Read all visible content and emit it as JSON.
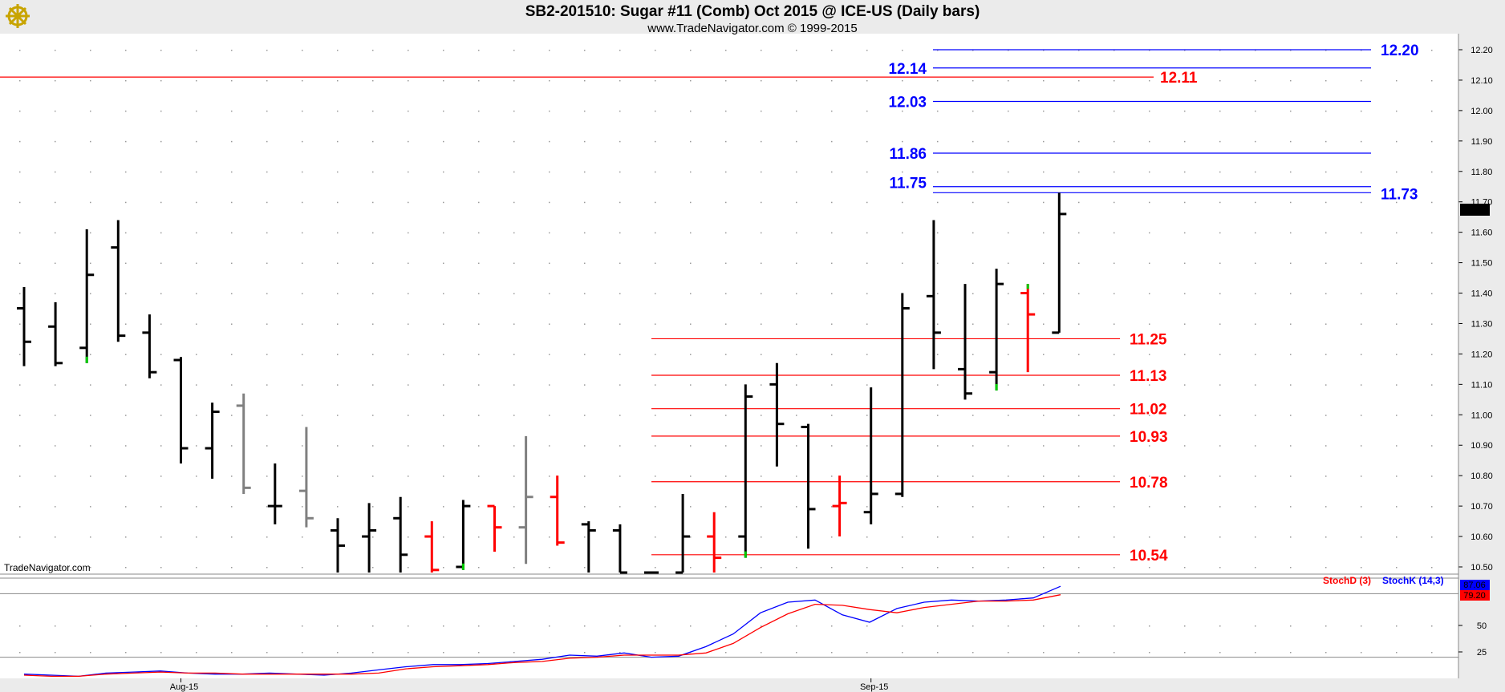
{
  "header": {
    "title": "SB2-201510:  Sugar #11 (Comb) Oct 2015 @ ICE-US  (Daily bars)",
    "subtitle": "www.TradeNavigator.com © 1999-2015"
  },
  "watermark": "TradeNavigator.com",
  "logo_icon": "ship-wheel-icon",
  "colors": {
    "up_bar": "#000000",
    "down_bar": "#ff0000",
    "inside_bar": "#808080",
    "low_tick": "#00cc00",
    "blue_level": "#0000ff",
    "red_level": "#ff0000",
    "stoch_d": "#ff0000",
    "stoch_k": "#0000ff",
    "grid_dot": "#999999",
    "pane_background": "#ffffff"
  },
  "last_price": "11.66",
  "chart_data": [
    {
      "type": "ohlc",
      "ylim": [
        10.45,
        12.25
      ],
      "y_ticks": [
        "12.20",
        "12.10",
        "12.00",
        "11.90",
        "11.80",
        "11.70",
        "11.60",
        "11.50",
        "11.40",
        "11.30",
        "11.20",
        "11.10",
        "11.00",
        "10.90",
        "10.80",
        "10.70",
        "10.60",
        "10.50"
      ],
      "x_labels": [
        {
          "label": "Aug-15",
          "bar_index": 5
        },
        {
          "label": "Sep-15",
          "bar_index": 27
        }
      ],
      "bars": [
        {
          "o": 11.35,
          "h": 11.42,
          "l": 11.16,
          "c": 11.24,
          "color": "black"
        },
        {
          "o": 11.29,
          "h": 11.37,
          "l": 11.16,
          "c": 11.17,
          "color": "black"
        },
        {
          "o": 11.22,
          "h": 11.61,
          "l": 11.17,
          "c": 11.46,
          "color": "black",
          "low_tick": true
        },
        {
          "o": 11.55,
          "h": 11.64,
          "l": 11.24,
          "c": 11.26,
          "color": "black"
        },
        {
          "o": 11.27,
          "h": 11.33,
          "l": 11.12,
          "c": 11.14,
          "color": "black"
        },
        {
          "o": 11.18,
          "h": 11.19,
          "l": 10.84,
          "c": 10.89,
          "color": "black"
        },
        {
          "o": 10.89,
          "h": 11.04,
          "l": 10.79,
          "c": 11.01,
          "color": "black"
        },
        {
          "o": 11.03,
          "h": 11.07,
          "l": 10.74,
          "c": 10.76,
          "color": "gray"
        },
        {
          "o": 10.7,
          "h": 10.84,
          "l": 10.64,
          "c": 10.7,
          "color": "black"
        },
        {
          "o": 10.75,
          "h": 10.96,
          "l": 10.63,
          "c": 10.66,
          "color": "gray"
        },
        {
          "o": 10.62,
          "h": 10.66,
          "l": 10.45,
          "c": 10.57,
          "color": "black",
          "low_tick": true
        },
        {
          "o": 10.6,
          "h": 10.71,
          "l": 10.45,
          "c": 10.62,
          "color": "black"
        },
        {
          "o": 10.66,
          "h": 10.73,
          "l": 10.45,
          "c": 10.54,
          "color": "black"
        },
        {
          "o": 10.6,
          "h": 10.65,
          "l": 10.47,
          "c": 10.49,
          "color": "red"
        },
        {
          "o": 10.5,
          "h": 10.72,
          "l": 10.49,
          "c": 10.7,
          "color": "black",
          "low_tick": true
        },
        {
          "o": 10.7,
          "h": 10.7,
          "l": 10.55,
          "c": 10.63,
          "color": "red"
        },
        {
          "o": 10.63,
          "h": 10.93,
          "l": 10.51,
          "c": 10.73,
          "color": "gray"
        },
        {
          "o": 10.73,
          "h": 10.8,
          "l": 10.57,
          "c": 10.58,
          "color": "red"
        },
        {
          "o": 10.64,
          "h": 10.65,
          "l": 10.45,
          "c": 10.62,
          "color": "black"
        },
        {
          "o": 10.62,
          "h": 10.64,
          "l": 10.45,
          "c": 10.45,
          "color": "black"
        },
        {
          "o": 10.45,
          "h": 10.46,
          "l": 10.45,
          "c": 10.45,
          "color": "black"
        },
        {
          "o": 10.48,
          "h": 10.74,
          "l": 10.45,
          "c": 10.6,
          "color": "black",
          "low_tick": true
        },
        {
          "o": 10.6,
          "h": 10.68,
          "l": 10.45,
          "c": 10.53,
          "color": "red"
        },
        {
          "o": 10.6,
          "h": 11.1,
          "l": 10.53,
          "c": 11.06,
          "color": "black",
          "low_tick": true
        },
        {
          "o": 11.1,
          "h": 11.17,
          "l": 10.83,
          "c": 10.97,
          "color": "black"
        },
        {
          "o": 10.96,
          "h": 10.97,
          "l": 10.56,
          "c": 10.69,
          "color": "black"
        },
        {
          "o": 10.7,
          "h": 10.8,
          "l": 10.6,
          "c": 10.71,
          "color": "red"
        },
        {
          "o": 10.68,
          "h": 11.09,
          "l": 10.64,
          "c": 10.74,
          "color": "black"
        },
        {
          "o": 10.74,
          "h": 11.4,
          "l": 10.73,
          "c": 11.35,
          "color": "black"
        },
        {
          "o": 11.39,
          "h": 11.64,
          "l": 11.15,
          "c": 11.27,
          "color": "black"
        },
        {
          "o": 11.15,
          "h": 11.43,
          "l": 11.05,
          "c": 11.07,
          "color": "black"
        },
        {
          "o": 11.14,
          "h": 11.48,
          "l": 11.08,
          "c": 11.43,
          "color": "black",
          "low_tick": true
        },
        {
          "o": 11.4,
          "h": 11.43,
          "l": 11.14,
          "c": 11.33,
          "color": "red",
          "high_tick": true
        },
        {
          "o": 11.27,
          "h": 11.73,
          "l": 11.27,
          "c": 11.66,
          "color": "black"
        }
      ],
      "levels": [
        {
          "value": 12.2,
          "label": "12.20",
          "color": "blue",
          "label_side": "right"
        },
        {
          "value": 12.14,
          "label": "12.14",
          "color": "blue",
          "label_side": "left"
        },
        {
          "value": 12.11,
          "label": "12.11",
          "color": "red",
          "label_side": "right",
          "full_width": true
        },
        {
          "value": 12.03,
          "label": "12.03",
          "color": "blue",
          "label_side": "left"
        },
        {
          "value": 11.86,
          "label": "11.86",
          "color": "blue",
          "label_side": "left"
        },
        {
          "value": 11.75,
          "label": "11.75",
          "color": "blue",
          "label_side": "left"
        },
        {
          "value": 11.73,
          "label": "11.73",
          "color": "blue",
          "label_side": "right"
        },
        {
          "value": 11.25,
          "label": "11.25",
          "color": "red",
          "label_side": "right"
        },
        {
          "value": 11.13,
          "label": "11.13",
          "color": "red",
          "label_side": "right"
        },
        {
          "value": 11.02,
          "label": "11.02",
          "color": "red",
          "label_side": "right"
        },
        {
          "value": 10.93,
          "label": "10.93",
          "color": "red",
          "label_side": "right"
        },
        {
          "value": 10.78,
          "label": "10.78",
          "color": "red",
          "label_side": "right"
        },
        {
          "value": 10.54,
          "label": "10.54",
          "color": "red",
          "label_side": "right"
        }
      ]
    },
    {
      "type": "line",
      "ylim": [
        0,
        100
      ],
      "y_ticks": [
        "50",
        "25"
      ],
      "guide_lines": [
        80,
        20
      ],
      "legend": [
        {
          "name": "StochD (3)",
          "color": "red"
        },
        {
          "name": "StochK (14,3)",
          "color": "blue"
        }
      ],
      "last_values": {
        "k": "87.06",
        "d": "79.20"
      },
      "series": [
        {
          "name": "StochK (14,3)",
          "values": [
            4,
            3,
            2,
            5,
            6,
            7,
            5,
            4,
            4,
            5,
            4,
            3,
            5,
            8,
            11,
            13,
            13,
            14,
            16,
            18,
            22,
            21,
            24,
            20,
            21,
            30,
            42,
            62,
            72,
            74,
            60,
            53,
            66,
            72,
            74,
            73,
            74,
            76,
            87
          ]
        },
        {
          "name": "StochD (3)",
          "values": [
            3,
            2,
            2,
            4,
            5,
            6,
            5,
            5,
            4,
            4,
            4,
            4,
            4,
            5,
            9,
            11,
            12,
            13,
            15,
            16,
            19,
            20,
            22,
            22,
            22,
            24,
            33,
            48,
            61,
            70,
            69,
            65,
            62,
            67,
            70,
            73,
            73,
            74,
            79
          ]
        }
      ]
    }
  ]
}
